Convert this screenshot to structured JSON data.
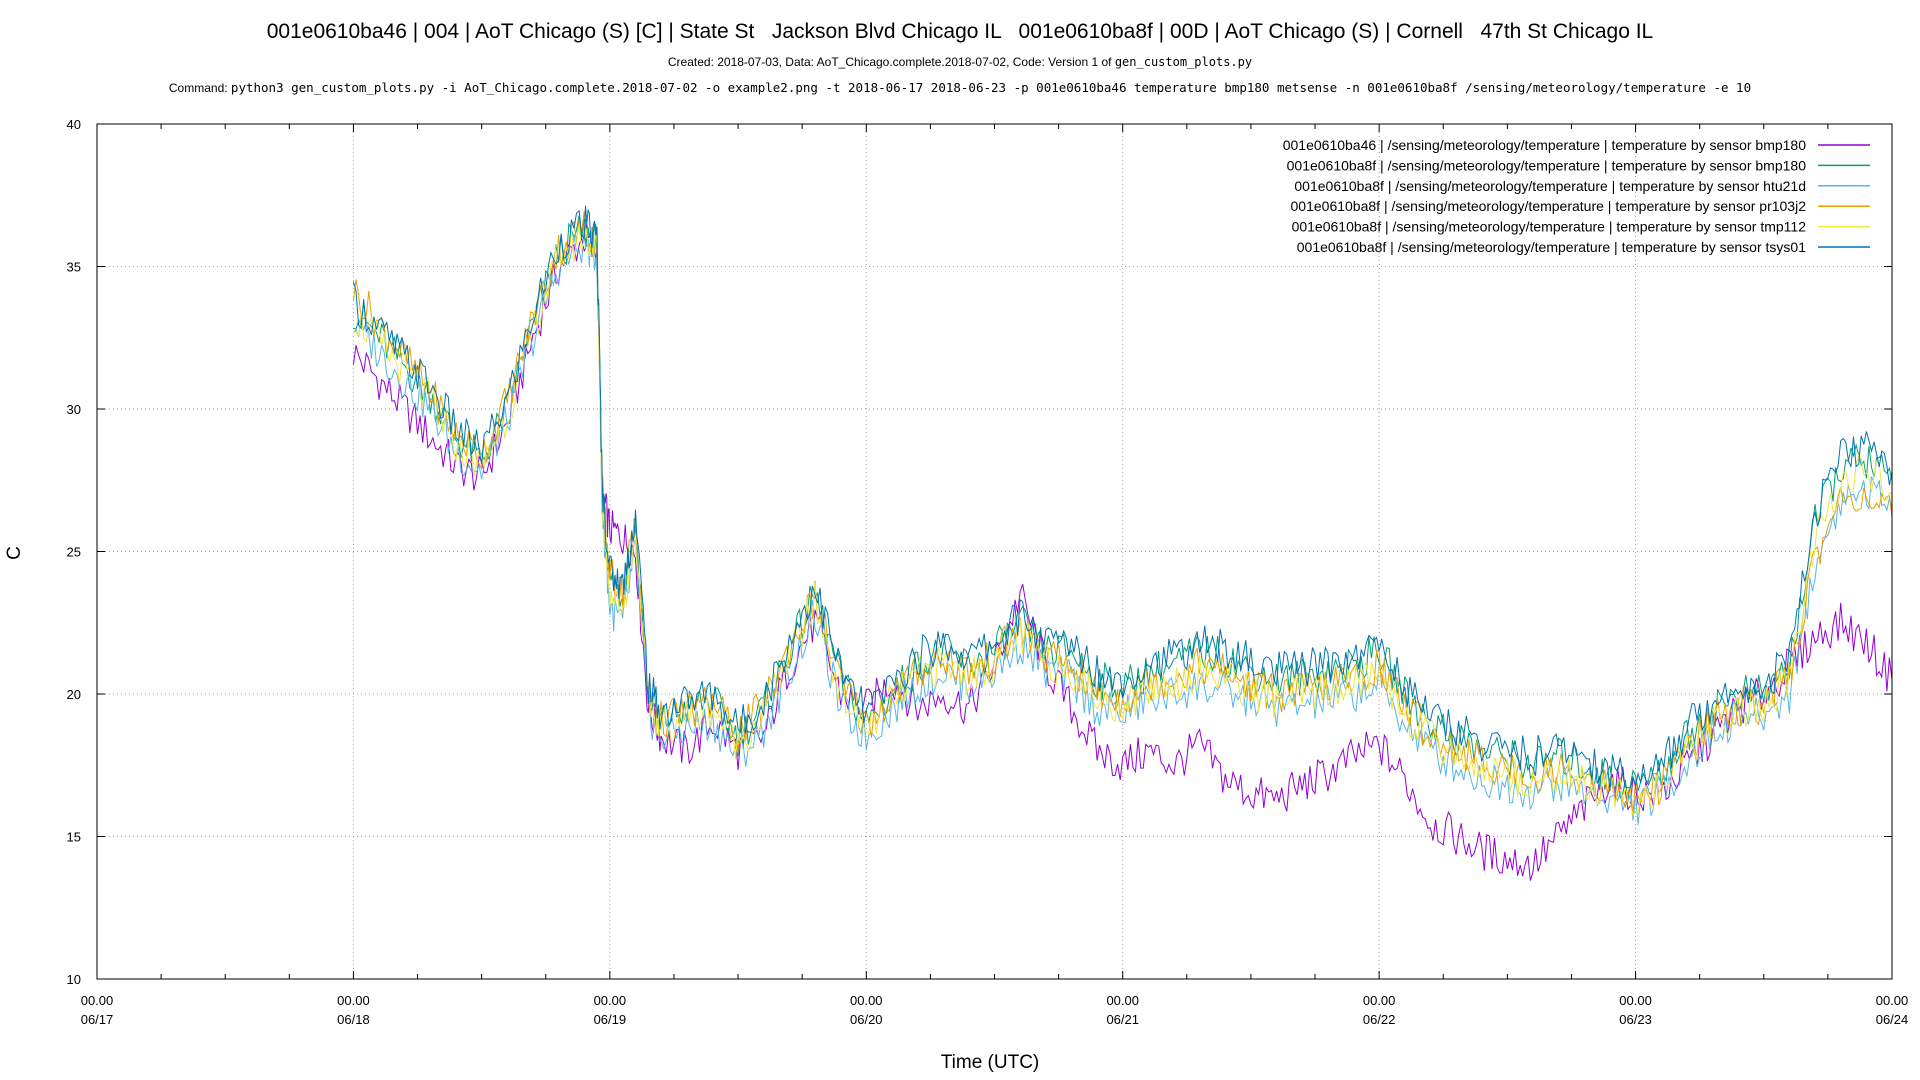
{
  "header": {
    "title": "001e0610ba46 | 004 | AoT Chicago (S) [C] | State St   Jackson Blvd Chicago IL   001e0610ba8f | 00D | AoT Chicago (S) | Cornell   47th St Chicago IL",
    "subtitle_text": "Created: 2018-07-03, Data: AoT_Chicago.complete.2018-07-02, Code: Version 1 of ",
    "subtitle_code": "gen_custom_plots.py",
    "command_label": "Command: ",
    "command_text": "python3 gen_custom_plots.py -i AoT_Chicago.complete.2018-07-02 -o example2.png -t 2018-06-17 2018-06-23 -p 001e0610ba46 temperature bmp180 metsense -n 001e0610ba8f /sensing/meteorology/temperature -e 10"
  },
  "chart_data": {
    "type": "line",
    "xlabel": "Time (UTC)",
    "ylabel": "C",
    "ylim": [
      10,
      40
    ],
    "yticks": [
      10,
      15,
      20,
      25,
      30,
      35,
      40
    ],
    "xlim_days": [
      0,
      7
    ],
    "xticks": [
      {
        "time": "00.00",
        "date": "06/17"
      },
      {
        "time": "00.00",
        "date": "06/18"
      },
      {
        "time": "00.00",
        "date": "06/19"
      },
      {
        "time": "00.00",
        "date": "06/20"
      },
      {
        "time": "00.00",
        "date": "06/21"
      },
      {
        "time": "00.00",
        "date": "06/22"
      },
      {
        "time": "00.00",
        "date": "06/23"
      },
      {
        "time": "00.00",
        "date": "06/24"
      }
    ],
    "grid": true,
    "legend_position": "top-right",
    "series": [
      {
        "name": "001e0610ba46 | /sensing/meteorology/temperature | temperature by sensor bmp180",
        "color": "#9400d3",
        "x": [
          1.0,
          1.1,
          1.2,
          1.3,
          1.4,
          1.5,
          1.6,
          1.7,
          1.8,
          1.9,
          1.95,
          1.97,
          2.0,
          2.05,
          2.1,
          2.15,
          2.2,
          2.3,
          2.4,
          2.5,
          2.6,
          2.7,
          2.8,
          2.9,
          3.0,
          3.1,
          3.2,
          3.3,
          3.4,
          3.5,
          3.6,
          3.7,
          3.8,
          3.9,
          4.0,
          4.1,
          4.2,
          4.3,
          4.4,
          4.5,
          4.6,
          4.7,
          4.8,
          4.9,
          5.0,
          5.1,
          5.2,
          5.3,
          5.4,
          5.5,
          5.6,
          5.7,
          5.8,
          5.9,
          6.0,
          6.1,
          6.2,
          6.3,
          6.4,
          6.5,
          6.6,
          6.7,
          6.8,
          6.9,
          7.0
        ],
        "values": [
          32.0,
          31.0,
          30.0,
          29.0,
          28.0,
          27.6,
          29.5,
          32.5,
          35.0,
          36.0,
          35.5,
          27.0,
          25.8,
          25.5,
          25.0,
          19.5,
          18.5,
          18.0,
          19.0,
          18.0,
          18.5,
          21.0,
          22.5,
          20.0,
          19.5,
          20.5,
          19.5,
          20.0,
          19.5,
          21.0,
          23.5,
          21.0,
          19.5,
          18.0,
          17.5,
          18.0,
          17.5,
          18.2,
          17.0,
          16.5,
          16.3,
          16.8,
          17.2,
          17.8,
          18.2,
          17.0,
          15.5,
          15.0,
          14.5,
          14.2,
          14.0,
          15.0,
          16.0,
          17.0,
          16.5,
          16.5,
          17.5,
          18.5,
          19.5,
          20.0,
          21.0,
          22.0,
          22.5,
          21.8,
          20.5
        ]
      },
      {
        "name": "001e0610ba8f | /sensing/meteorology/temperature | temperature by sensor bmp180",
        "color": "#009e73",
        "x": [
          1.0,
          1.1,
          1.2,
          1.3,
          1.4,
          1.5,
          1.6,
          1.7,
          1.8,
          1.9,
          1.95,
          1.97,
          2.0,
          2.05,
          2.1,
          2.15,
          2.2,
          2.3,
          2.4,
          2.5,
          2.6,
          2.7,
          2.8,
          2.9,
          3.0,
          3.1,
          3.2,
          3.3,
          3.4,
          3.5,
          3.6,
          3.7,
          3.8,
          3.9,
          4.0,
          4.1,
          4.2,
          4.3,
          4.4,
          4.5,
          4.6,
          4.7,
          4.8,
          4.9,
          5.0,
          5.1,
          5.2,
          5.3,
          5.4,
          5.5,
          5.6,
          5.7,
          5.8,
          5.9,
          6.0,
          6.1,
          6.2,
          6.3,
          6.4,
          6.5,
          6.6,
          6.7,
          6.8,
          6.9,
          7.0
        ],
        "values": [
          33.5,
          32.5,
          31.5,
          30.5,
          29.0,
          28.2,
          30.0,
          33.0,
          35.5,
          36.3,
          35.8,
          27.0,
          24.0,
          23.5,
          26.0,
          20.0,
          19.0,
          19.5,
          19.8,
          18.5,
          19.5,
          21.5,
          23.5,
          20.5,
          19.0,
          20.0,
          21.0,
          21.5,
          21.0,
          21.5,
          22.5,
          21.5,
          21.5,
          20.5,
          20.2,
          20.8,
          21.0,
          21.5,
          21.3,
          20.8,
          20.5,
          20.6,
          20.8,
          21.0,
          21.5,
          20.0,
          19.0,
          18.5,
          18.0,
          17.8,
          17.5,
          17.8,
          17.5,
          17.0,
          16.8,
          17.2,
          18.5,
          19.5,
          20.0,
          20.0,
          21.0,
          26.0,
          28.0,
          28.2,
          27.5
        ]
      },
      {
        "name": "001e0610ba8f | /sensing/meteorology/temperature | temperature by sensor htu21d",
        "color": "#56b4e9",
        "x": [
          1.0,
          1.1,
          1.2,
          1.3,
          1.4,
          1.5,
          1.6,
          1.7,
          1.8,
          1.9,
          1.95,
          1.97,
          2.0,
          2.05,
          2.1,
          2.15,
          2.2,
          2.3,
          2.4,
          2.5,
          2.6,
          2.7,
          2.8,
          2.9,
          3.0,
          3.1,
          3.2,
          3.3,
          3.4,
          3.5,
          3.6,
          3.7,
          3.8,
          3.9,
          4.0,
          4.1,
          4.2,
          4.3,
          4.4,
          4.5,
          4.6,
          4.7,
          4.8,
          4.9,
          5.0,
          5.1,
          5.2,
          5.3,
          5.4,
          5.5,
          5.6,
          5.7,
          5.8,
          5.9,
          6.0,
          6.1,
          6.2,
          6.3,
          6.4,
          6.5,
          6.6,
          6.7,
          6.8,
          6.9,
          7.0
        ],
        "values": [
          33.0,
          32.0,
          31.0,
          30.0,
          28.5,
          27.8,
          29.6,
          32.5,
          35.0,
          35.8,
          35.3,
          26.5,
          23.0,
          22.5,
          25.0,
          19.3,
          18.5,
          18.8,
          19.0,
          17.8,
          18.8,
          20.8,
          22.8,
          19.5,
          18.5,
          19.5,
          20.3,
          20.8,
          20.3,
          20.8,
          21.8,
          20.8,
          20.5,
          19.5,
          19.3,
          19.8,
          20.0,
          20.3,
          20.0,
          19.8,
          19.5,
          19.6,
          19.8,
          20.0,
          20.3,
          19.0,
          18.0,
          17.5,
          17.0,
          16.8,
          16.6,
          16.9,
          16.6,
          16.3,
          16.0,
          16.5,
          17.6,
          18.6,
          19.2,
          19.2,
          20.0,
          24.5,
          26.8,
          27.2,
          26.5
        ]
      },
      {
        "name": "001e0610ba8f | /sensing/meteorology/temperature | temperature by sensor pr103j2",
        "color": "#e69f00",
        "x": [
          1.0,
          1.1,
          1.2,
          1.3,
          1.4,
          1.5,
          1.6,
          1.7,
          1.8,
          1.9,
          1.95,
          1.97,
          2.0,
          2.05,
          2.1,
          2.15,
          2.2,
          2.3,
          2.4,
          2.5,
          2.6,
          2.7,
          2.8,
          2.9,
          3.0,
          3.1,
          3.2,
          3.3,
          3.4,
          3.5,
          3.6,
          3.7,
          3.8,
          3.9,
          4.0,
          4.1,
          4.2,
          4.3,
          4.4,
          4.5,
          4.6,
          4.7,
          4.8,
          4.9,
          5.0,
          5.1,
          5.2,
          5.3,
          5.4,
          5.5,
          5.6,
          5.7,
          5.8,
          5.9,
          6.0,
          6.1,
          6.2,
          6.3,
          6.4,
          6.5,
          6.6,
          6.7,
          6.8,
          6.9,
          7.0
        ],
        "values": [
          34.2,
          33.0,
          31.8,
          30.6,
          29.1,
          28.4,
          30.3,
          33.2,
          35.6,
          36.4,
          35.9,
          27.2,
          24.2,
          23.6,
          26.1,
          20.0,
          19.1,
          19.4,
          19.7,
          18.6,
          19.6,
          21.6,
          23.4,
          20.4,
          18.9,
          19.9,
          20.8,
          21.3,
          20.8,
          21.3,
          22.3,
          21.3,
          21.0,
          20.0,
          19.8,
          20.4,
          20.6,
          21.0,
          20.8,
          20.3,
          20.0,
          20.1,
          20.3,
          20.5,
          21.0,
          19.6,
          18.6,
          18.1,
          17.6,
          17.4,
          17.1,
          17.4,
          17.1,
          16.6,
          16.4,
          16.8,
          18.1,
          19.1,
          19.6,
          19.6,
          20.6,
          24.8,
          26.8,
          27.0,
          26.2
        ]
      },
      {
        "name": "001e0610ba8f | /sensing/meteorology/temperature | temperature by sensor tmp112",
        "color": "#f0e442",
        "x": [
          1.0,
          1.1,
          1.2,
          1.3,
          1.4,
          1.5,
          1.6,
          1.7,
          1.8,
          1.9,
          1.95,
          1.97,
          2.0,
          2.05,
          2.1,
          2.15,
          2.2,
          2.3,
          2.4,
          2.5,
          2.6,
          2.7,
          2.8,
          2.9,
          3.0,
          3.1,
          3.2,
          3.3,
          3.4,
          3.5,
          3.6,
          3.7,
          3.8,
          3.9,
          4.0,
          4.1,
          4.2,
          4.3,
          4.4,
          4.5,
          4.6,
          4.7,
          4.8,
          4.9,
          5.0,
          5.1,
          5.2,
          5.3,
          5.4,
          5.5,
          5.6,
          5.7,
          5.8,
          5.9,
          6.0,
          6.1,
          6.2,
          6.3,
          6.4,
          6.5,
          6.6,
          6.7,
          6.8,
          6.9,
          7.0
        ],
        "values": [
          33.3,
          32.3,
          31.3,
          30.3,
          28.8,
          28.0,
          29.8,
          32.8,
          35.3,
          36.1,
          35.6,
          26.8,
          23.6,
          23.0,
          25.6,
          19.7,
          18.8,
          19.2,
          19.5,
          18.3,
          19.3,
          21.3,
          23.2,
          20.1,
          18.8,
          19.8,
          20.6,
          21.1,
          20.6,
          21.1,
          22.1,
          21.1,
          20.9,
          19.9,
          19.6,
          20.2,
          20.4,
          20.8,
          20.6,
          20.1,
          19.8,
          19.9,
          20.1,
          20.3,
          20.8,
          19.4,
          18.4,
          17.9,
          17.4,
          17.2,
          16.9,
          17.2,
          16.9,
          16.5,
          16.3,
          16.7,
          17.9,
          18.9,
          19.5,
          19.5,
          20.4,
          25.4,
          27.5,
          27.8,
          27.0
        ]
      },
      {
        "name": "001e0610ba8f | /sensing/meteorology/temperature | temperature by sensor tsys01",
        "color": "#0072b2",
        "x": [
          1.0,
          1.1,
          1.2,
          1.3,
          1.4,
          1.5,
          1.6,
          1.7,
          1.8,
          1.9,
          1.95,
          1.97,
          2.0,
          2.05,
          2.1,
          2.15,
          2.2,
          2.3,
          2.4,
          2.5,
          2.6,
          2.7,
          2.8,
          2.9,
          3.0,
          3.1,
          3.2,
          3.3,
          3.4,
          3.5,
          3.6,
          3.7,
          3.8,
          3.9,
          4.0,
          4.1,
          4.2,
          4.3,
          4.4,
          4.5,
          4.6,
          4.7,
          4.8,
          4.9,
          5.0,
          5.1,
          5.2,
          5.3,
          5.4,
          5.5,
          5.6,
          5.7,
          5.8,
          5.9,
          6.0,
          6.1,
          6.2,
          6.3,
          6.4,
          6.5,
          6.6,
          6.7,
          6.8,
          6.9,
          7.0
        ],
        "values": [
          33.8,
          32.8,
          31.8,
          30.8,
          29.3,
          28.5,
          30.3,
          33.3,
          35.8,
          36.5,
          36.0,
          27.3,
          24.3,
          23.8,
          26.3,
          20.3,
          19.3,
          19.8,
          20.0,
          18.8,
          19.8,
          21.8,
          23.8,
          20.8,
          19.3,
          20.3,
          21.3,
          21.8,
          21.3,
          21.8,
          22.8,
          21.8,
          21.8,
          20.8,
          20.5,
          21.1,
          21.3,
          21.8,
          21.6,
          21.1,
          20.8,
          20.9,
          21.1,
          21.3,
          21.8,
          20.3,
          19.3,
          18.8,
          18.3,
          18.1,
          17.8,
          18.1,
          17.8,
          17.3,
          17.1,
          17.5,
          18.8,
          19.8,
          20.3,
          20.3,
          21.3,
          26.3,
          28.3,
          28.6,
          27.8
        ]
      }
    ]
  }
}
